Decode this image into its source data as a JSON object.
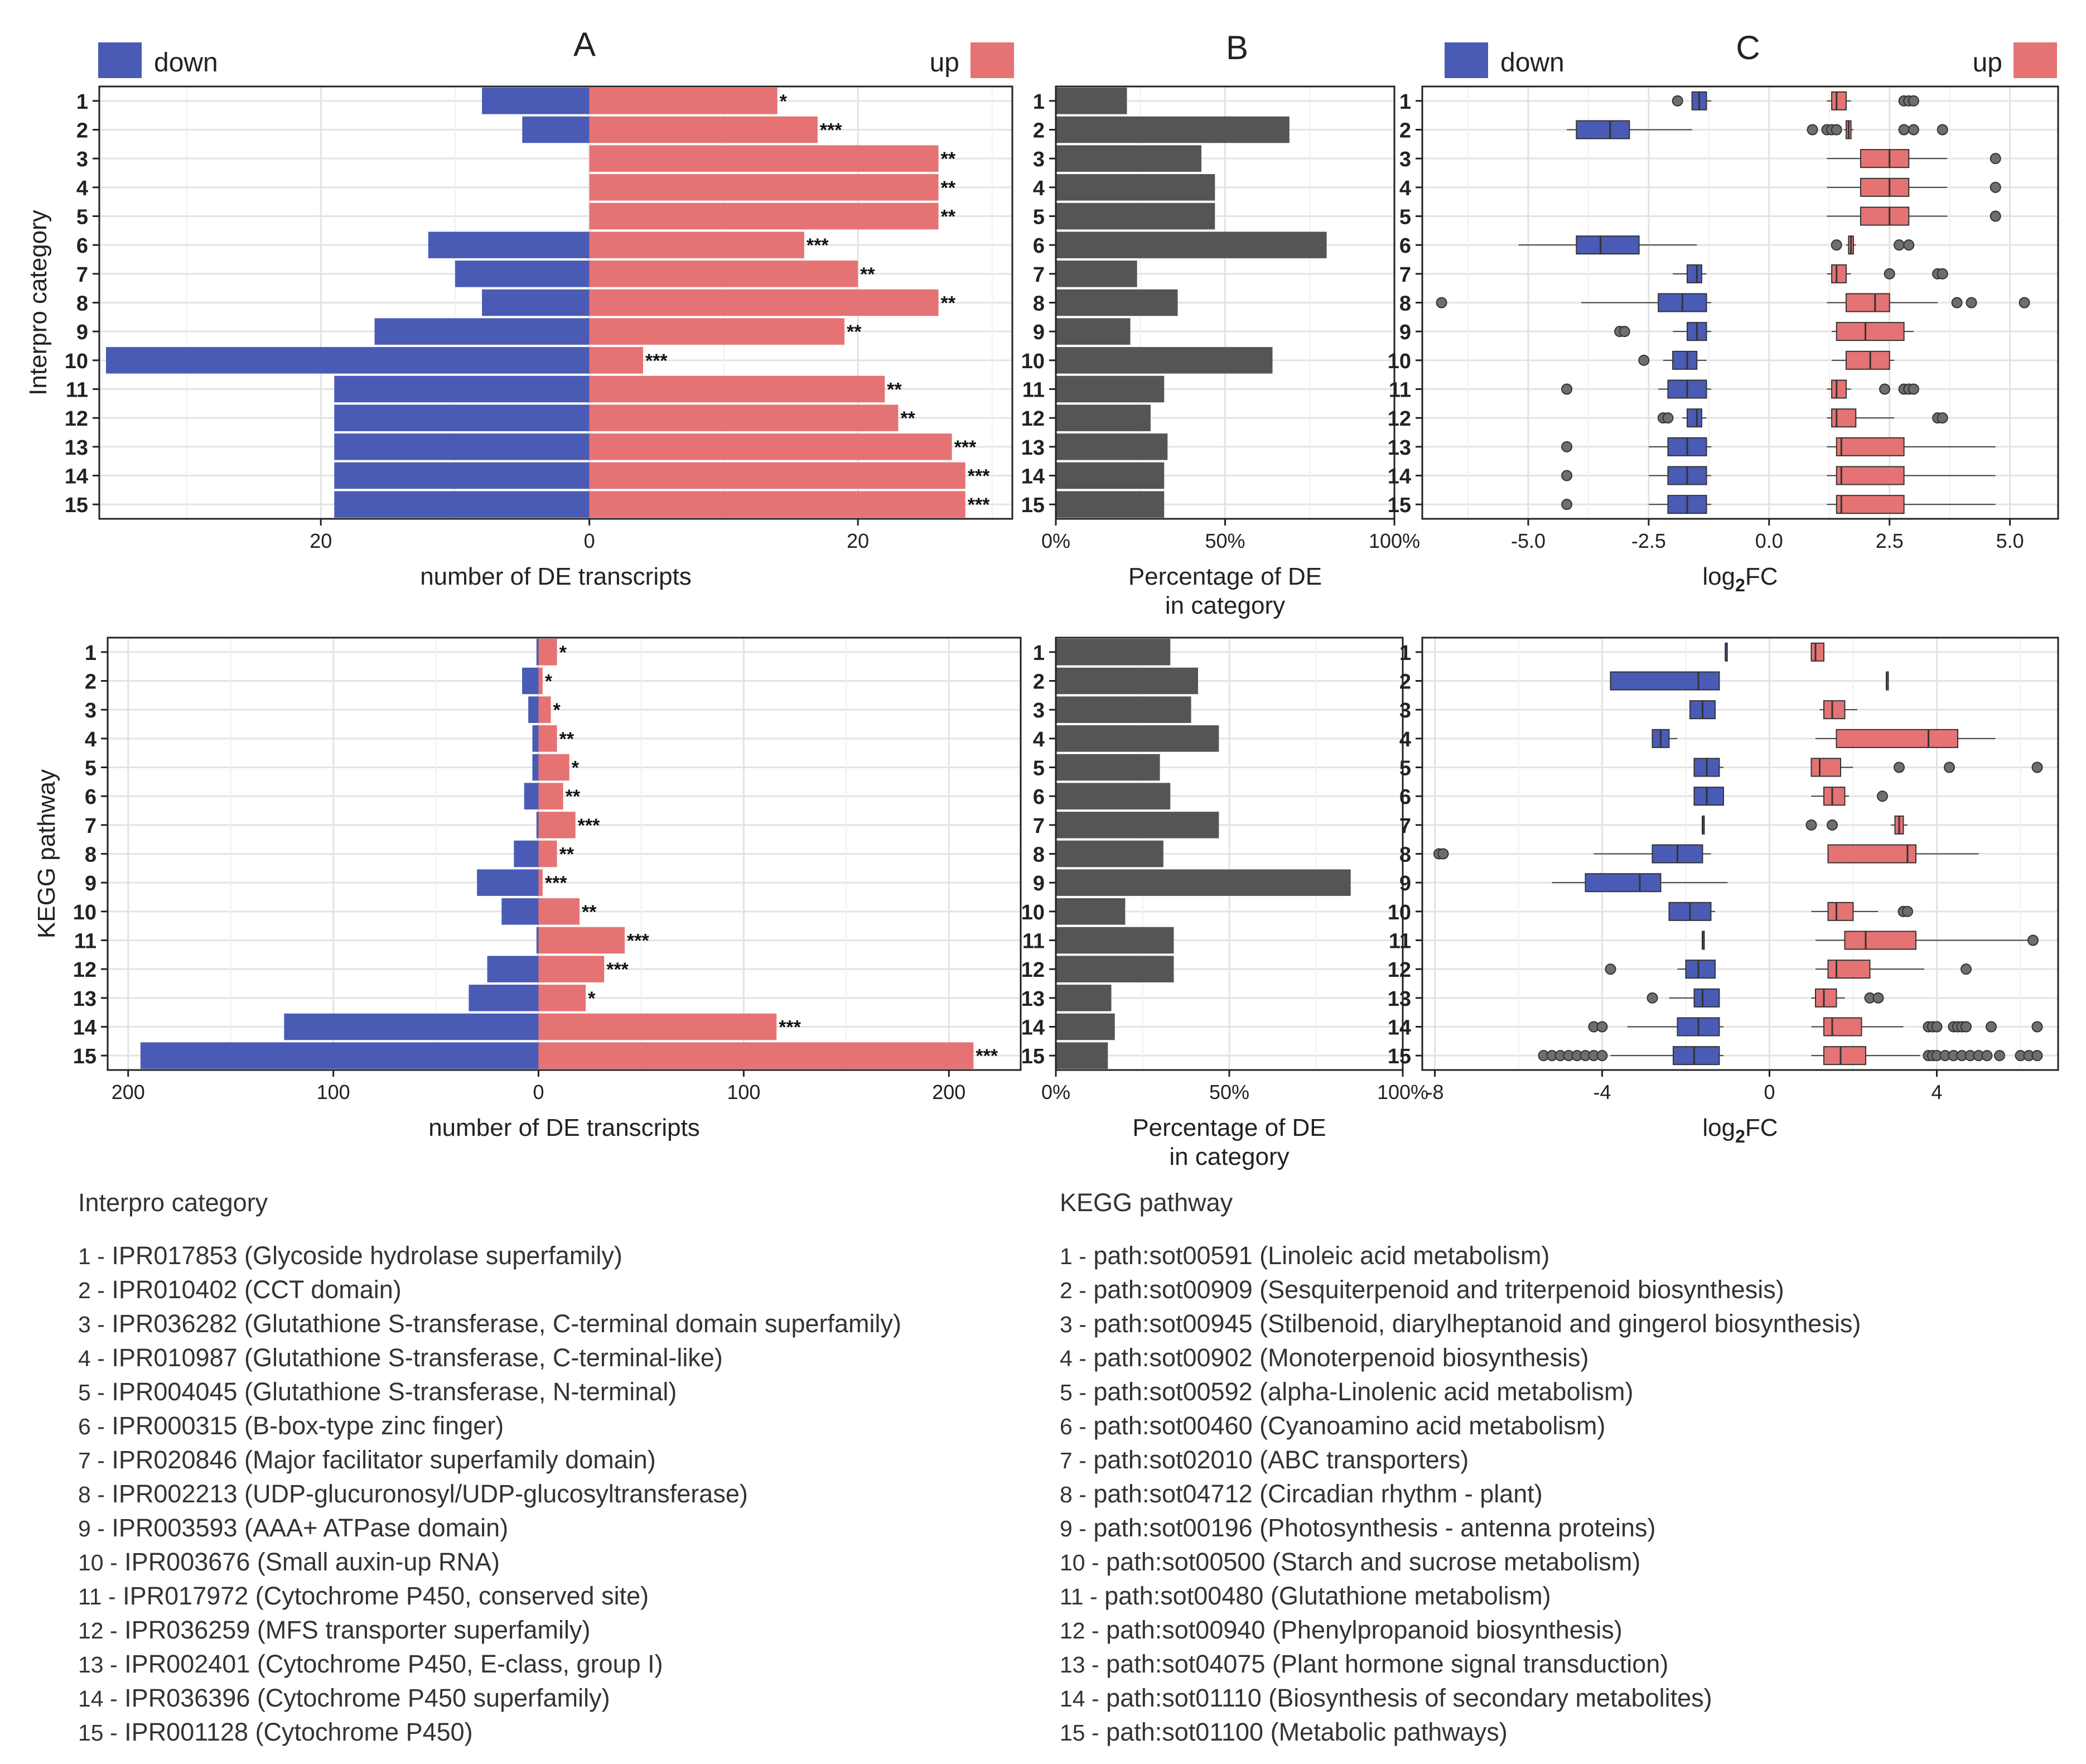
{
  "chart_data": [
    {
      "id": "A_interpro",
      "type": "bar",
      "panel_label": "A",
      "legend": {
        "down": "down",
        "up": "up"
      },
      "colors": {
        "down": "#4a5bb5",
        "up": "#e57373"
      },
      "ylabel": "Interpro category",
      "xlabel": "number of DE transcripts",
      "categories": [
        "1",
        "2",
        "3",
        "4",
        "5",
        "6",
        "7",
        "8",
        "9",
        "10",
        "11",
        "12",
        "13",
        "14",
        "15"
      ],
      "series": [
        {
          "name": "down",
          "values": [
            8,
            5,
            0,
            0,
            0,
            12,
            10,
            8,
            16,
            36,
            19,
            19,
            19,
            19,
            19
          ]
        },
        {
          "name": "up",
          "values": [
            14,
            17,
            26,
            26,
            26,
            16,
            20,
            26,
            19,
            4,
            22,
            23,
            27,
            28,
            28
          ]
        }
      ],
      "significance": [
        "*",
        "***",
        "**",
        "**",
        "**",
        "***",
        "**",
        "**",
        "**",
        "***",
        "**",
        "**",
        "***",
        "***",
        "***"
      ],
      "xlim": [
        -36.5,
        31.5
      ],
      "xticks": [
        -20,
        0,
        20
      ],
      "xtick_labels": [
        "20",
        "0",
        "20"
      ]
    },
    {
      "id": "B_interpro",
      "type": "bar",
      "panel_label": "B",
      "xlabel": "Percentage of DE in category",
      "categories": [
        "1",
        "2",
        "3",
        "4",
        "5",
        "6",
        "7",
        "8",
        "9",
        "10",
        "11",
        "12",
        "13",
        "14",
        "15"
      ],
      "values": [
        21,
        69,
        43,
        47,
        47,
        80,
        24,
        36,
        22,
        64,
        32,
        28,
        33,
        32,
        32
      ],
      "xlim": [
        0,
        100
      ],
      "xticks": [
        0,
        50,
        100
      ],
      "xtick_labels": [
        "0%",
        "50%",
        "100%"
      ]
    },
    {
      "id": "C_interpro",
      "type": "box",
      "panel_label": "C",
      "legend": {
        "down": "down",
        "up": "up"
      },
      "colors": {
        "down": "#4a5bb5",
        "up": "#e57373"
      },
      "xlabel": "log2FC",
      "categories": [
        "1",
        "2",
        "3",
        "4",
        "5",
        "6",
        "7",
        "8",
        "9",
        "10",
        "11",
        "12",
        "13",
        "14",
        "15"
      ],
      "xlim": [
        -7.2,
        6.0
      ],
      "xticks": [
        -5.0,
        -2.5,
        0.0,
        2.5,
        5.0
      ],
      "xtick_labels": [
        "-5.0",
        "-2.5",
        "0.0",
        "2.5",
        "5.0"
      ],
      "boxes_down": [
        {
          "min": -1.6,
          "q1": -1.6,
          "med": -1.45,
          "q3": -1.3,
          "max": -1.2,
          "out": [
            -1.9
          ]
        },
        {
          "min": -4.2,
          "q1": -4.0,
          "med": -3.3,
          "q3": -2.9,
          "max": -1.6,
          "out": []
        },
        null,
        null,
        null,
        {
          "min": -5.2,
          "q1": -4.0,
          "med": -3.5,
          "q3": -2.7,
          "max": -1.5,
          "out": []
        },
        {
          "min": -2.0,
          "q1": -1.7,
          "med": -1.5,
          "q3": -1.4,
          "max": -1.3,
          "out": []
        },
        {
          "min": -3.9,
          "q1": -2.3,
          "med": -1.8,
          "q3": -1.3,
          "max": -1.2,
          "out": [
            -6.8
          ]
        },
        {
          "min": -2.0,
          "q1": -1.7,
          "med": -1.5,
          "q3": -1.3,
          "max": -1.2,
          "out": [
            -3.1,
            -3.0
          ]
        },
        {
          "min": -2.2,
          "q1": -2.0,
          "med": -1.7,
          "q3": -1.5,
          "max": -1.3,
          "out": [
            -2.6
          ]
        },
        {
          "min": -2.3,
          "q1": -2.1,
          "med": -1.7,
          "q3": -1.3,
          "max": -1.2,
          "out": [
            -4.2
          ]
        },
        {
          "min": -1.8,
          "q1": -1.7,
          "med": -1.5,
          "q3": -1.4,
          "max": -1.3,
          "out": [
            -2.2,
            -2.1
          ]
        },
        {
          "min": -2.5,
          "q1": -2.1,
          "med": -1.7,
          "q3": -1.3,
          "max": -1.2,
          "out": [
            -4.2
          ]
        },
        {
          "min": -2.5,
          "q1": -2.1,
          "med": -1.7,
          "q3": -1.3,
          "max": -1.2,
          "out": [
            -4.2
          ]
        },
        {
          "min": -2.5,
          "q1": -2.1,
          "med": -1.7,
          "q3": -1.3,
          "max": -1.2,
          "out": [
            -4.2
          ]
        }
      ],
      "boxes_up": [
        {
          "min": 1.2,
          "q1": 1.3,
          "med": 1.4,
          "q3": 1.6,
          "max": 1.7,
          "out": [
            2.8,
            2.9,
            3.0
          ]
        },
        {
          "min": 1.55,
          "q1": 1.6,
          "med": 1.65,
          "q3": 1.7,
          "max": 1.75,
          "out": [
            0.9,
            1.2,
            1.3,
            1.4,
            2.8,
            3.0,
            3.6
          ]
        },
        {
          "min": 1.2,
          "q1": 1.9,
          "med": 2.5,
          "q3": 2.9,
          "max": 3.7,
          "out": [
            4.7
          ]
        },
        {
          "min": 1.2,
          "q1": 1.9,
          "med": 2.5,
          "q3": 2.9,
          "max": 3.7,
          "out": [
            4.7
          ]
        },
        {
          "min": 1.2,
          "q1": 1.9,
          "med": 2.5,
          "q3": 2.9,
          "max": 3.7,
          "out": [
            4.7
          ]
        },
        {
          "min": 1.6,
          "q1": 1.65,
          "med": 1.7,
          "q3": 1.75,
          "max": 1.8,
          "out": [
            1.4,
            2.7,
            2.9
          ]
        },
        {
          "min": 1.2,
          "q1": 1.3,
          "med": 1.4,
          "q3": 1.6,
          "max": 1.7,
          "out": [
            2.5,
            3.5,
            3.6
          ]
        },
        {
          "min": 1.2,
          "q1": 1.6,
          "med": 2.2,
          "q3": 2.5,
          "max": 3.5,
          "out": [
            3.9,
            4.2,
            5.3
          ]
        },
        {
          "min": 1.3,
          "q1": 1.4,
          "med": 2.0,
          "q3": 2.8,
          "max": 3.0,
          "out": []
        },
        {
          "min": 1.3,
          "q1": 1.6,
          "med": 2.1,
          "q3": 2.5,
          "max": 2.6,
          "out": []
        },
        {
          "min": 1.2,
          "q1": 1.3,
          "med": 1.4,
          "q3": 1.6,
          "max": 1.7,
          "out": [
            2.4,
            2.8,
            2.9,
            3.0
          ]
        },
        {
          "min": 1.2,
          "q1": 1.3,
          "med": 1.4,
          "q3": 1.8,
          "max": 2.6,
          "out": [
            3.5,
            3.6
          ]
        },
        {
          "min": 1.2,
          "q1": 1.4,
          "med": 1.5,
          "q3": 2.8,
          "max": 4.7,
          "out": []
        },
        {
          "min": 1.2,
          "q1": 1.4,
          "med": 1.5,
          "q3": 2.8,
          "max": 4.7,
          "out": []
        },
        {
          "min": 1.2,
          "q1": 1.4,
          "med": 1.5,
          "q3": 2.8,
          "max": 4.7,
          "out": []
        }
      ]
    },
    {
      "id": "A_kegg",
      "type": "bar",
      "ylabel": "KEGG pathway",
      "xlabel": "number of DE transcripts",
      "colors": {
        "down": "#4a5bb5",
        "up": "#e57373"
      },
      "categories": [
        "1",
        "2",
        "3",
        "4",
        "5",
        "6",
        "7",
        "8",
        "9",
        "10",
        "11",
        "12",
        "13",
        "14",
        "15"
      ],
      "series": [
        {
          "name": "down",
          "values": [
            1,
            8,
            5,
            3,
            3,
            7,
            1,
            12,
            30,
            18,
            1,
            25,
            34,
            124,
            194
          ]
        },
        {
          "name": "up",
          "values": [
            9,
            2,
            6,
            9,
            15,
            12,
            18,
            9,
            2,
            20,
            42,
            32,
            23,
            116,
            212
          ]
        }
      ],
      "significance": [
        "*",
        "*",
        "*",
        "**",
        "*",
        "**",
        "***",
        "**",
        "***",
        "**",
        "***",
        "***",
        "*",
        "***",
        "***"
      ],
      "xlim": [
        -210,
        235
      ],
      "xticks": [
        -200,
        -100,
        0,
        100,
        200
      ],
      "xtick_labels": [
        "200",
        "100",
        "0",
        "100",
        "200"
      ]
    },
    {
      "id": "B_kegg",
      "type": "bar",
      "xlabel": "Percentage of DE in category",
      "categories": [
        "1",
        "2",
        "3",
        "4",
        "5",
        "6",
        "7",
        "8",
        "9",
        "10",
        "11",
        "12",
        "13",
        "14",
        "15"
      ],
      "values": [
        33,
        41,
        39,
        47,
        30,
        33,
        47,
        31,
        85,
        20,
        34,
        34,
        16,
        17,
        15
      ],
      "xlim": [
        0,
        100
      ],
      "xticks": [
        0,
        50,
        100
      ],
      "xtick_labels": [
        "0%",
        "50%",
        "100%"
      ]
    },
    {
      "id": "C_kegg",
      "type": "box",
      "xlabel": "log2FC",
      "colors": {
        "down": "#4a5bb5",
        "up": "#e57373"
      },
      "categories": [
        "1",
        "2",
        "3",
        "4",
        "5",
        "6",
        "7",
        "8",
        "9",
        "10",
        "11",
        "12",
        "13",
        "14",
        "15"
      ],
      "xlim": [
        -8.3,
        6.9
      ],
      "xticks": [
        -8,
        -4,
        0,
        4
      ],
      "xtick_labels": [
        "-8",
        "-4",
        "0",
        "4"
      ],
      "boxes_down": [
        {
          "min": -1.05,
          "q1": -1.05,
          "med": -1.05,
          "q3": -1.05,
          "max": -1.05,
          "out": []
        },
        {
          "min": -3.8,
          "q1": -3.8,
          "med": -1.7,
          "q3": -1.2,
          "max": -1.2,
          "out": []
        },
        {
          "min": -1.9,
          "q1": -1.9,
          "med": -1.6,
          "q3": -1.3,
          "max": -1.3,
          "out": []
        },
        {
          "min": -2.8,
          "q1": -2.8,
          "med": -2.6,
          "q3": -2.4,
          "max": -2.2,
          "out": []
        },
        {
          "min": -1.8,
          "q1": -1.8,
          "med": -1.5,
          "q3": -1.2,
          "max": -1.1,
          "out": []
        },
        {
          "min": -1.8,
          "q1": -1.8,
          "med": -1.5,
          "q3": -1.1,
          "max": -1.1,
          "out": []
        },
        {
          "min": -1.6,
          "q1": -1.6,
          "med": -1.6,
          "q3": -1.6,
          "max": -1.6,
          "out": []
        },
        {
          "min": -4.2,
          "q1": -2.8,
          "med": -2.2,
          "q3": -1.6,
          "max": -1.4,
          "out": [
            -7.9,
            -7.8
          ]
        },
        {
          "min": -5.2,
          "q1": -4.4,
          "med": -3.1,
          "q3": -2.6,
          "max": -1.0,
          "out": []
        },
        {
          "min": -2.4,
          "q1": -2.4,
          "med": -1.9,
          "q3": -1.4,
          "max": -1.3,
          "out": []
        },
        {
          "min": -1.6,
          "q1": -1.6,
          "med": -1.6,
          "q3": -1.6,
          "max": -1.6,
          "out": []
        },
        {
          "min": -2.2,
          "q1": -2.0,
          "med": -1.7,
          "q3": -1.3,
          "max": -1.3,
          "out": [
            -3.8
          ]
        },
        {
          "min": -2.4,
          "q1": -1.8,
          "med": -1.6,
          "q3": -1.2,
          "max": -1.2,
          "out": [
            -2.8
          ]
        },
        {
          "min": -3.4,
          "q1": -2.2,
          "med": -1.7,
          "q3": -1.2,
          "max": -1.1,
          "out": [
            -4.2,
            -4.0
          ]
        },
        {
          "min": -3.8,
          "q1": -2.3,
          "med": -1.8,
          "q3": -1.2,
          "max": -1.1,
          "out": [
            -5.4,
            -5.2,
            -5.0,
            -4.8,
            -4.6,
            -4.4,
            -4.2,
            -4.0
          ]
        }
      ],
      "boxes_up": [
        {
          "min": 1.0,
          "q1": 1.0,
          "med": 1.1,
          "q3": 1.3,
          "max": 1.3,
          "out": []
        },
        {
          "min": 2.8,
          "q1": 2.8,
          "med": 2.8,
          "q3": 2.8,
          "max": 2.8,
          "out": []
        },
        {
          "min": 1.2,
          "q1": 1.3,
          "med": 1.5,
          "q3": 1.8,
          "max": 2.1,
          "out": []
        },
        {
          "min": 1.1,
          "q1": 1.6,
          "med": 3.8,
          "q3": 4.5,
          "max": 5.4,
          "out": []
        },
        {
          "min": 1.0,
          "q1": 1.0,
          "med": 1.2,
          "q3": 1.7,
          "max": 2.0,
          "out": [
            3.1,
            4.3,
            6.4
          ]
        },
        {
          "min": 1.0,
          "q1": 1.3,
          "med": 1.5,
          "q3": 1.8,
          "max": 1.9,
          "out": [
            2.7
          ]
        },
        {
          "min": 2.9,
          "q1": 3.0,
          "med": 3.1,
          "q3": 3.2,
          "max": 3.3,
          "out": [
            1.0,
            1.5
          ]
        },
        {
          "min": 1.4,
          "q1": 1.4,
          "med": 3.3,
          "q3": 3.5,
          "max": 5.0,
          "out": []
        },
        null,
        {
          "min": 1.0,
          "q1": 1.4,
          "med": 1.6,
          "q3": 2.0,
          "max": 2.6,
          "out": [
            3.2,
            3.3
          ]
        },
        {
          "min": 1.1,
          "q1": 1.8,
          "med": 2.3,
          "q3": 3.5,
          "max": 6.2,
          "out": [
            6.3
          ]
        },
        {
          "min": 1.1,
          "q1": 1.4,
          "med": 1.6,
          "q3": 2.4,
          "max": 3.7,
          "out": [
            4.7
          ]
        },
        {
          "min": 1.0,
          "q1": 1.1,
          "med": 1.3,
          "q3": 1.6,
          "max": 1.8,
          "out": [
            2.4,
            2.6
          ]
        },
        {
          "min": 1.0,
          "q1": 1.3,
          "med": 1.5,
          "q3": 2.2,
          "max": 3.2,
          "out": [
            3.8,
            3.9,
            4.0,
            4.4,
            4.5,
            4.6,
            4.7,
            5.3,
            6.4
          ]
        },
        {
          "min": 1.0,
          "q1": 1.3,
          "med": 1.7,
          "q3": 2.3,
          "max": 3.6,
          "out": [
            3.8,
            3.9,
            4.0,
            4.2,
            4.4,
            4.6,
            4.8,
            5.0,
            5.2,
            5.5,
            6.0,
            6.2,
            6.4
          ]
        }
      ]
    }
  ],
  "legend_text": {
    "interpro_heading": "Interpro category",
    "kegg_heading": "KEGG pathway",
    "interpro_items": [
      {
        "num": "1 -",
        "text": "IPR017853 (Glycoside hydrolase superfamily)"
      },
      {
        "num": "2 -",
        "text": "IPR010402 (CCT domain)"
      },
      {
        "num": "3 -",
        "text": "IPR036282 (Glutathione S-transferase, C-terminal domain superfamily)"
      },
      {
        "num": "4 -",
        "text": "IPR010987 (Glutathione S-transferase, C-terminal-like)"
      },
      {
        "num": "5 -",
        "text": "IPR004045 (Glutathione S-transferase, N-terminal)"
      },
      {
        "num": "6 -",
        "text": "IPR000315 (B-box-type zinc finger)"
      },
      {
        "num": "7 -",
        "text": "IPR020846 (Major facilitator superfamily domain)"
      },
      {
        "num": "8 -",
        "text": "IPR002213 (UDP-glucuronosyl/UDP-glucosyltransferase)"
      },
      {
        "num": "9 -",
        "text": "IPR003593 (AAA+ ATPase domain)"
      },
      {
        "num": "10 -",
        "text": "IPR003676 (Small auxin-up RNA)"
      },
      {
        "num": "11 -",
        "text": "IPR017972 (Cytochrome P450, conserved site)"
      },
      {
        "num": "12 -",
        "text": "IPR036259 (MFS transporter superfamily)"
      },
      {
        "num": "13 -",
        "text": "IPR002401 (Cytochrome P450, E-class, group I)"
      },
      {
        "num": "14 -",
        "text": "IPR036396 (Cytochrome P450 superfamily)"
      },
      {
        "num": "15 -",
        "text": "IPR001128 (Cytochrome P450)"
      }
    ],
    "kegg_items": [
      {
        "num": "1 -",
        "text": "path:sot00591 (Linoleic acid metabolism)"
      },
      {
        "num": "2 -",
        "text": "path:sot00909 (Sesquiterpenoid and triterpenoid biosynthesis)"
      },
      {
        "num": "3 -",
        "text": "path:sot00945 (Stilbenoid, diarylheptanoid and gingerol biosynthesis)"
      },
      {
        "num": "4 -",
        "text": "path:sot00902 (Monoterpenoid biosynthesis)"
      },
      {
        "num": "5 -",
        "text": "path:sot00592 (alpha-Linolenic acid metabolism)"
      },
      {
        "num": "6 -",
        "text": "path:sot00460 (Cyanoamino acid metabolism)"
      },
      {
        "num": "7 -",
        "text": "path:sot02010 (ABC transporters)"
      },
      {
        "num": "8 -",
        "text": "path:sot04712 (Circadian rhythm - plant)"
      },
      {
        "num": "9 -",
        "text": "path:sot00196 (Photosynthesis - antenna proteins)"
      },
      {
        "num": "10 -",
        "text": "path:sot00500 (Starch and sucrose metabolism)"
      },
      {
        "num": "11 -",
        "text": "path:sot00480 (Glutathione metabolism)"
      },
      {
        "num": "12 -",
        "text": "path:sot00940 (Phenylpropanoid biosynthesis)"
      },
      {
        "num": "13 -",
        "text": "path:sot04075 (Plant hormone signal transduction)"
      },
      {
        "num": "14 -",
        "text": "path:sot01110 (Biosynthesis of secondary metabolites)"
      },
      {
        "num": "15 -",
        "text": "path:sot01100 (Metabolic pathways)"
      }
    ]
  }
}
